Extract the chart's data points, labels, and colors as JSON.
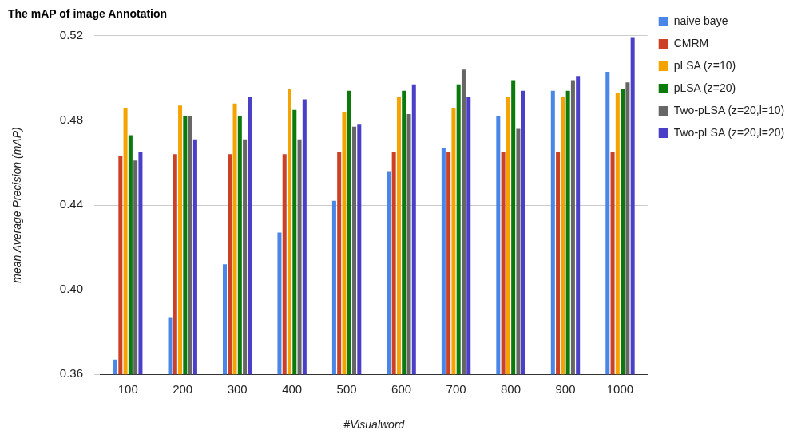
{
  "chart_data": {
    "type": "bar",
    "title": "The mAP of image Annotation",
    "xlabel": "#Visualword",
    "ylabel": "mean Average Precision (mAP)",
    "categories": [
      "100",
      "200",
      "300",
      "400",
      "500",
      "600",
      "700",
      "800",
      "900",
      "1000"
    ],
    "series": [
      {
        "name": "naive baye",
        "color": "#4a86e8",
        "values": [
          0.367,
          0.387,
          0.412,
          0.427,
          0.442,
          0.456,
          0.467,
          0.482,
          0.494,
          0.503
        ]
      },
      {
        "name": "CMRM",
        "color": "#cc4125",
        "values": [
          0.463,
          0.464,
          0.464,
          0.464,
          0.465,
          0.465,
          0.465,
          0.465,
          0.465,
          0.465
        ]
      },
      {
        "name": "pLSA (z=10)",
        "color": "#f4a300",
        "values": [
          0.486,
          0.487,
          0.488,
          0.495,
          0.484,
          0.491,
          0.486,
          0.491,
          0.491,
          0.493
        ]
      },
      {
        "name": "pLSA (z=20)",
        "color": "#0b7a0b",
        "values": [
          0.473,
          0.482,
          0.482,
          0.485,
          0.494,
          0.494,
          0.497,
          0.499,
          0.494,
          0.495
        ]
      },
      {
        "name": "Two-pLSA (z=20,l=10)",
        "color": "#666666",
        "values": [
          0.461,
          0.482,
          0.471,
          0.471,
          0.477,
          0.483,
          0.504,
          0.476,
          0.499,
          0.498
        ]
      },
      {
        "name": "Two-pLSA (z=20,l=20)",
        "color": "#4b3fc7",
        "values": [
          0.465,
          0.471,
          0.491,
          0.49,
          0.478,
          0.497,
          0.491,
          0.494,
          0.501,
          0.519
        ]
      }
    ],
    "ylim": [
      0.36,
      0.52
    ],
    "yticks": [
      {
        "value": 0.36,
        "label": "0.36"
      },
      {
        "value": 0.4,
        "label": "0.40"
      },
      {
        "value": 0.44,
        "label": "0.44"
      },
      {
        "value": 0.48,
        "label": "0.48"
      },
      {
        "value": 0.52,
        "label": "0.52"
      }
    ],
    "grid": "y",
    "legend": "right"
  }
}
